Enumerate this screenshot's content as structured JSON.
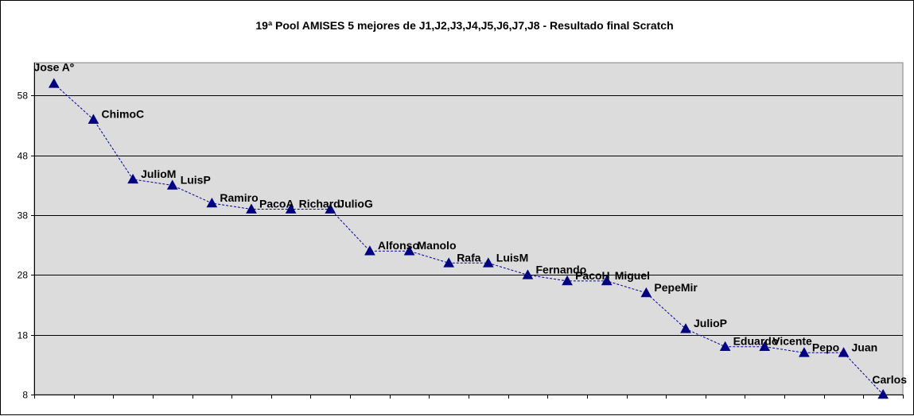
{
  "chart_data": {
    "type": "line",
    "title": "19ª Pool AMISES 5 mejores de J1,J2,J3,J4,J5,J6,J7,J8  - Resultado final  Scratch",
    "xlabel": "",
    "ylabel": "",
    "ylim": [
      8,
      63.5
    ],
    "yticks": [
      8,
      18,
      28,
      38,
      48,
      58
    ],
    "grid": true,
    "legend": "none",
    "colors": {
      "plot_area": "#dcdcdc",
      "grid": "#000000",
      "line": "#0000a0",
      "marker": "#000080"
    },
    "marker": "triangle",
    "line_style": "dashed",
    "categories": [
      "Jose Aº",
      "ChimoC",
      "JulioM",
      "LuisP",
      "Ramiro",
      "PacoA",
      "Richard",
      "JulioG",
      "Alfonso",
      "Manolo",
      "Rafa",
      "LuisM",
      "Fernando",
      "PacoH",
      "Miguel",
      "PepeMir",
      "JulioP",
      "Eduardo",
      "Vicente",
      "Pepo",
      "Juan",
      "Carlos"
    ],
    "values": [
      60,
      54,
      44,
      43,
      40,
      39,
      39,
      39,
      32,
      32,
      30,
      30,
      28,
      27,
      27,
      25,
      19,
      16,
      16,
      15,
      15,
      8
    ]
  }
}
